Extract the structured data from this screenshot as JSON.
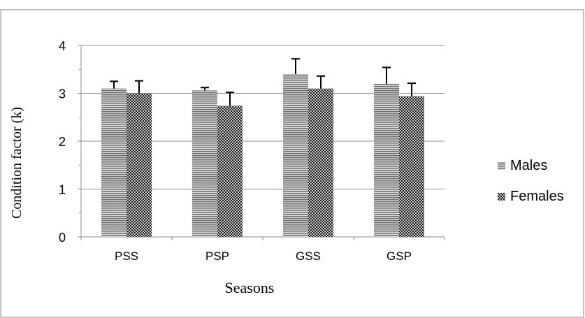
{
  "chart_data": {
    "type": "bar",
    "title": "",
    "xlabel": "Seasons",
    "ylabel": "Condition factor (k)",
    "categories": [
      "PSS",
      "PSP",
      "GSS",
      "GSP"
    ],
    "ylim": [
      0,
      4
    ],
    "yticks": [
      0,
      1,
      2,
      3,
      4
    ],
    "grid": true,
    "legend_position": "right",
    "series": [
      {
        "name": "Males",
        "values": [
          3.1,
          3.06,
          3.4,
          3.2
        ],
        "errors": [
          0.15,
          0.06,
          0.32,
          0.34
        ],
        "color": "#9a9a9a",
        "pattern": "horizontal-stripes"
      },
      {
        "name": "Females",
        "values": [
          3.0,
          2.74,
          3.1,
          2.94
        ],
        "errors": [
          0.26,
          0.28,
          0.26,
          0.27
        ],
        "color": "#2e2e2e",
        "pattern": "checker"
      }
    ]
  }
}
